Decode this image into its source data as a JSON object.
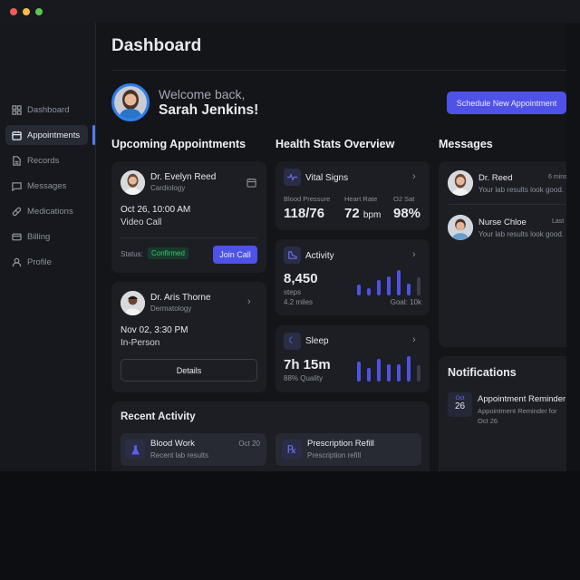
{
  "window": {
    "controls": [
      "close",
      "minimize",
      "maximize"
    ],
    "colors": {
      "close": "#ee5f57",
      "minimize": "#f4bd4f",
      "maximize": "#5fc454"
    }
  },
  "sidebar": {
    "items": [
      {
        "label": "Dashboard",
        "icon": "grid-icon"
      },
      {
        "label": "Appointments",
        "icon": "calendar-icon",
        "active": true
      },
      {
        "label": "Records",
        "icon": "document-icon"
      },
      {
        "label": "Messages",
        "icon": "chat-icon"
      },
      {
        "label": "Medications",
        "icon": "pill-icon"
      },
      {
        "label": "Billing",
        "icon": "credit-card-icon"
      },
      {
        "label": "Profile",
        "icon": "user-icon"
      }
    ]
  },
  "header": {
    "title": "Dashboard",
    "welcome": "Welcome back,",
    "user_name": "Sarah Jenkins!",
    "schedule_button": "Schedule New Appointment"
  },
  "accent": "#4f52e8",
  "appointments": {
    "title": "Upcoming Appointments",
    "items": [
      {
        "doctor": "Dr. Evelyn Reed",
        "specialty": "Cardiology",
        "datetime": "Oct 26, 10:00 AM",
        "type": "Video Call",
        "status_label": "Status:",
        "status": "Confirmed",
        "action": "Join Call"
      },
      {
        "doctor": "Dr. Aris Thorne",
        "specialty": "Dermatology",
        "datetime": "Nov 02, 3:30 PM",
        "type": "In-Person",
        "action": "Details"
      }
    ]
  },
  "health": {
    "title": "Health Stats Overview",
    "vitals": {
      "title": "Vital Signs",
      "metrics": [
        {
          "label": "Blood Pressure",
          "value": "118/76"
        },
        {
          "label": "Heart Rate",
          "value": "72",
          "unit": "bpm"
        },
        {
          "label": "O2 Sat",
          "value": "98%"
        }
      ]
    },
    "activity": {
      "title": "Activity",
      "value": "8,450",
      "unit": "steps",
      "distance": "4.2 miles",
      "goal": "Goal: 10k",
      "bars": [
        12,
        8,
        17,
        21,
        28,
        13,
        20
      ]
    },
    "sleep": {
      "title": "Sleep",
      "value": "7h 15m",
      "quality": "88% Quality",
      "bars": [
        22,
        15,
        25,
        19,
        19,
        28,
        18
      ]
    }
  },
  "messages": {
    "title": "Messages",
    "items": [
      {
        "name": "Dr. Reed",
        "time": "6 mins",
        "preview": "Your lab results look good."
      },
      {
        "name": "Nurse Chloe",
        "time": "Last",
        "preview": "Your lab results look good."
      }
    ]
  },
  "notifications": {
    "title": "Notifications",
    "items": [
      {
        "month": "Oct",
        "day": "26",
        "title": "Appointment Reminder",
        "body": "Appointment Reminder for",
        "body2": "Oct 26"
      }
    ]
  },
  "recent": {
    "title": "Recent Activity",
    "items": [
      {
        "title": "Blood Work",
        "subtitle": "Recent lab results",
        "date": "Oct 20",
        "icon": "flask-icon"
      },
      {
        "title": "Prescription Refill",
        "subtitle": "Prescription refill",
        "icon": "rx-icon",
        "glyph": "℞"
      }
    ]
  }
}
